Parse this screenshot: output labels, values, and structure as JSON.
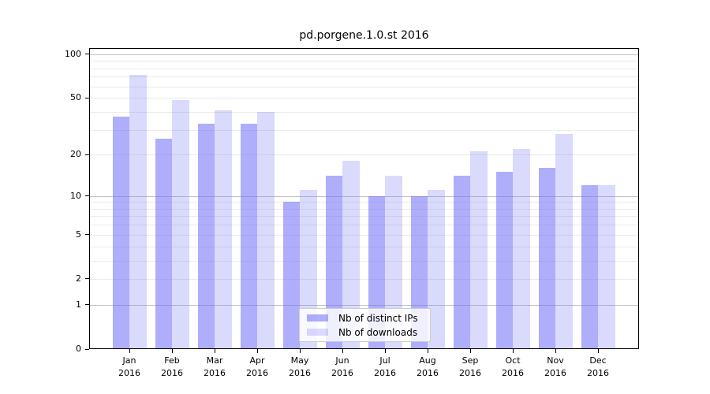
{
  "title": "pd.porgene.1.0.st 2016",
  "chart_data": {
    "type": "bar",
    "title": "pd.porgene.1.0.st 2016",
    "categories": [
      "Jan",
      "Feb",
      "Mar",
      "Apr",
      "May",
      "Jun",
      "Jul",
      "Aug",
      "Sep",
      "Oct",
      "Nov",
      "Dec"
    ],
    "year_label": "2016",
    "series": [
      {
        "name": "Nb of distinct IPs",
        "color": "rgba(108,108,247,0.55)",
        "values": [
          37,
          26,
          33,
          33,
          9,
          14,
          10,
          10,
          14,
          15,
          16,
          12
        ]
      },
      {
        "name": "Nb of downloads",
        "color": "rgba(108,108,247,0.25)",
        "values": [
          72,
          48,
          41,
          40,
          11,
          18,
          14,
          11,
          21,
          22,
          28,
          12
        ]
      }
    ],
    "xlabel": "",
    "ylabel": "",
    "yscale": "log(1+x)",
    "ylim": [
      0,
      110
    ],
    "yticks": [
      0,
      1,
      2,
      5,
      10,
      20,
      50,
      100
    ],
    "major_gridlines": [
      1,
      10,
      100
    ],
    "minor_gridlines": [
      2,
      3,
      4,
      5,
      6,
      7,
      8,
      9,
      20,
      30,
      40,
      50,
      60,
      70,
      80,
      90
    ],
    "grid": true,
    "legend_position": "inside-bottom-center"
  },
  "legend": {
    "items": [
      {
        "label": "Nb of distinct IPs"
      },
      {
        "label": "Nb of downloads"
      }
    ]
  },
  "colors": {
    "bar_dark": "rgba(108,108,247,0.55)",
    "bar_light": "rgba(108,108,247,0.25)",
    "major_grid": "#c3c3c3",
    "minor_grid": "#eaeaea",
    "axis": "#000000",
    "legend_border": "#cccccc"
  }
}
